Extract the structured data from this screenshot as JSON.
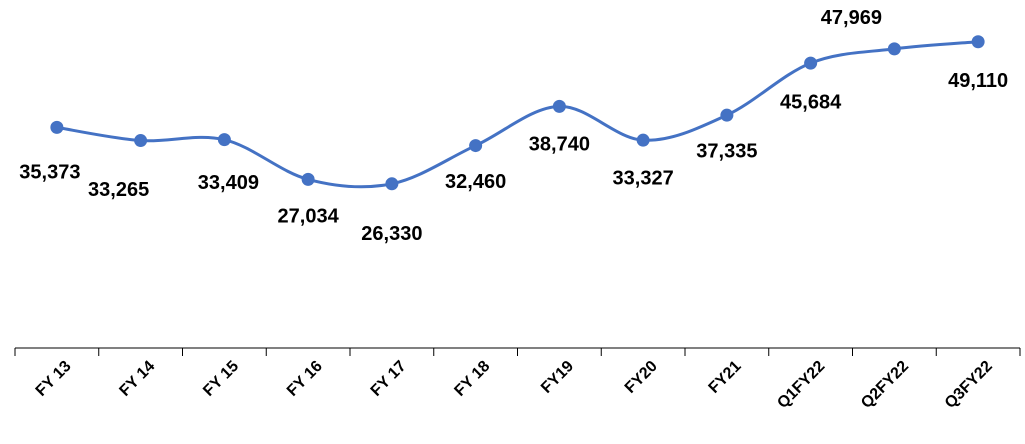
{
  "chart_data": {
    "type": "line",
    "categories": [
      "FY 13",
      "FY 14",
      "FY 15",
      "FY 16",
      "FY 17",
      "FY 18",
      "FY19",
      "FY20",
      "FY21",
      "Q1FY22",
      "Q2FY22",
      "Q3FY22"
    ],
    "series": [
      {
        "name": "Value",
        "color": "#4472c4",
        "values": [
          35373,
          33265,
          33409,
          27034,
          26330,
          32460,
          38740,
          33327,
          37335,
          45684,
          47969,
          49110
        ],
        "value_labels": [
          "35,373",
          "33,265",
          "33,409",
          "27,034",
          "26,330",
          "32,460",
          "38,740",
          "33,327",
          "37,335",
          "45,684",
          "47,969",
          "49,110"
        ]
      }
    ],
    "ylim": [
      0,
      55000
    ]
  }
}
